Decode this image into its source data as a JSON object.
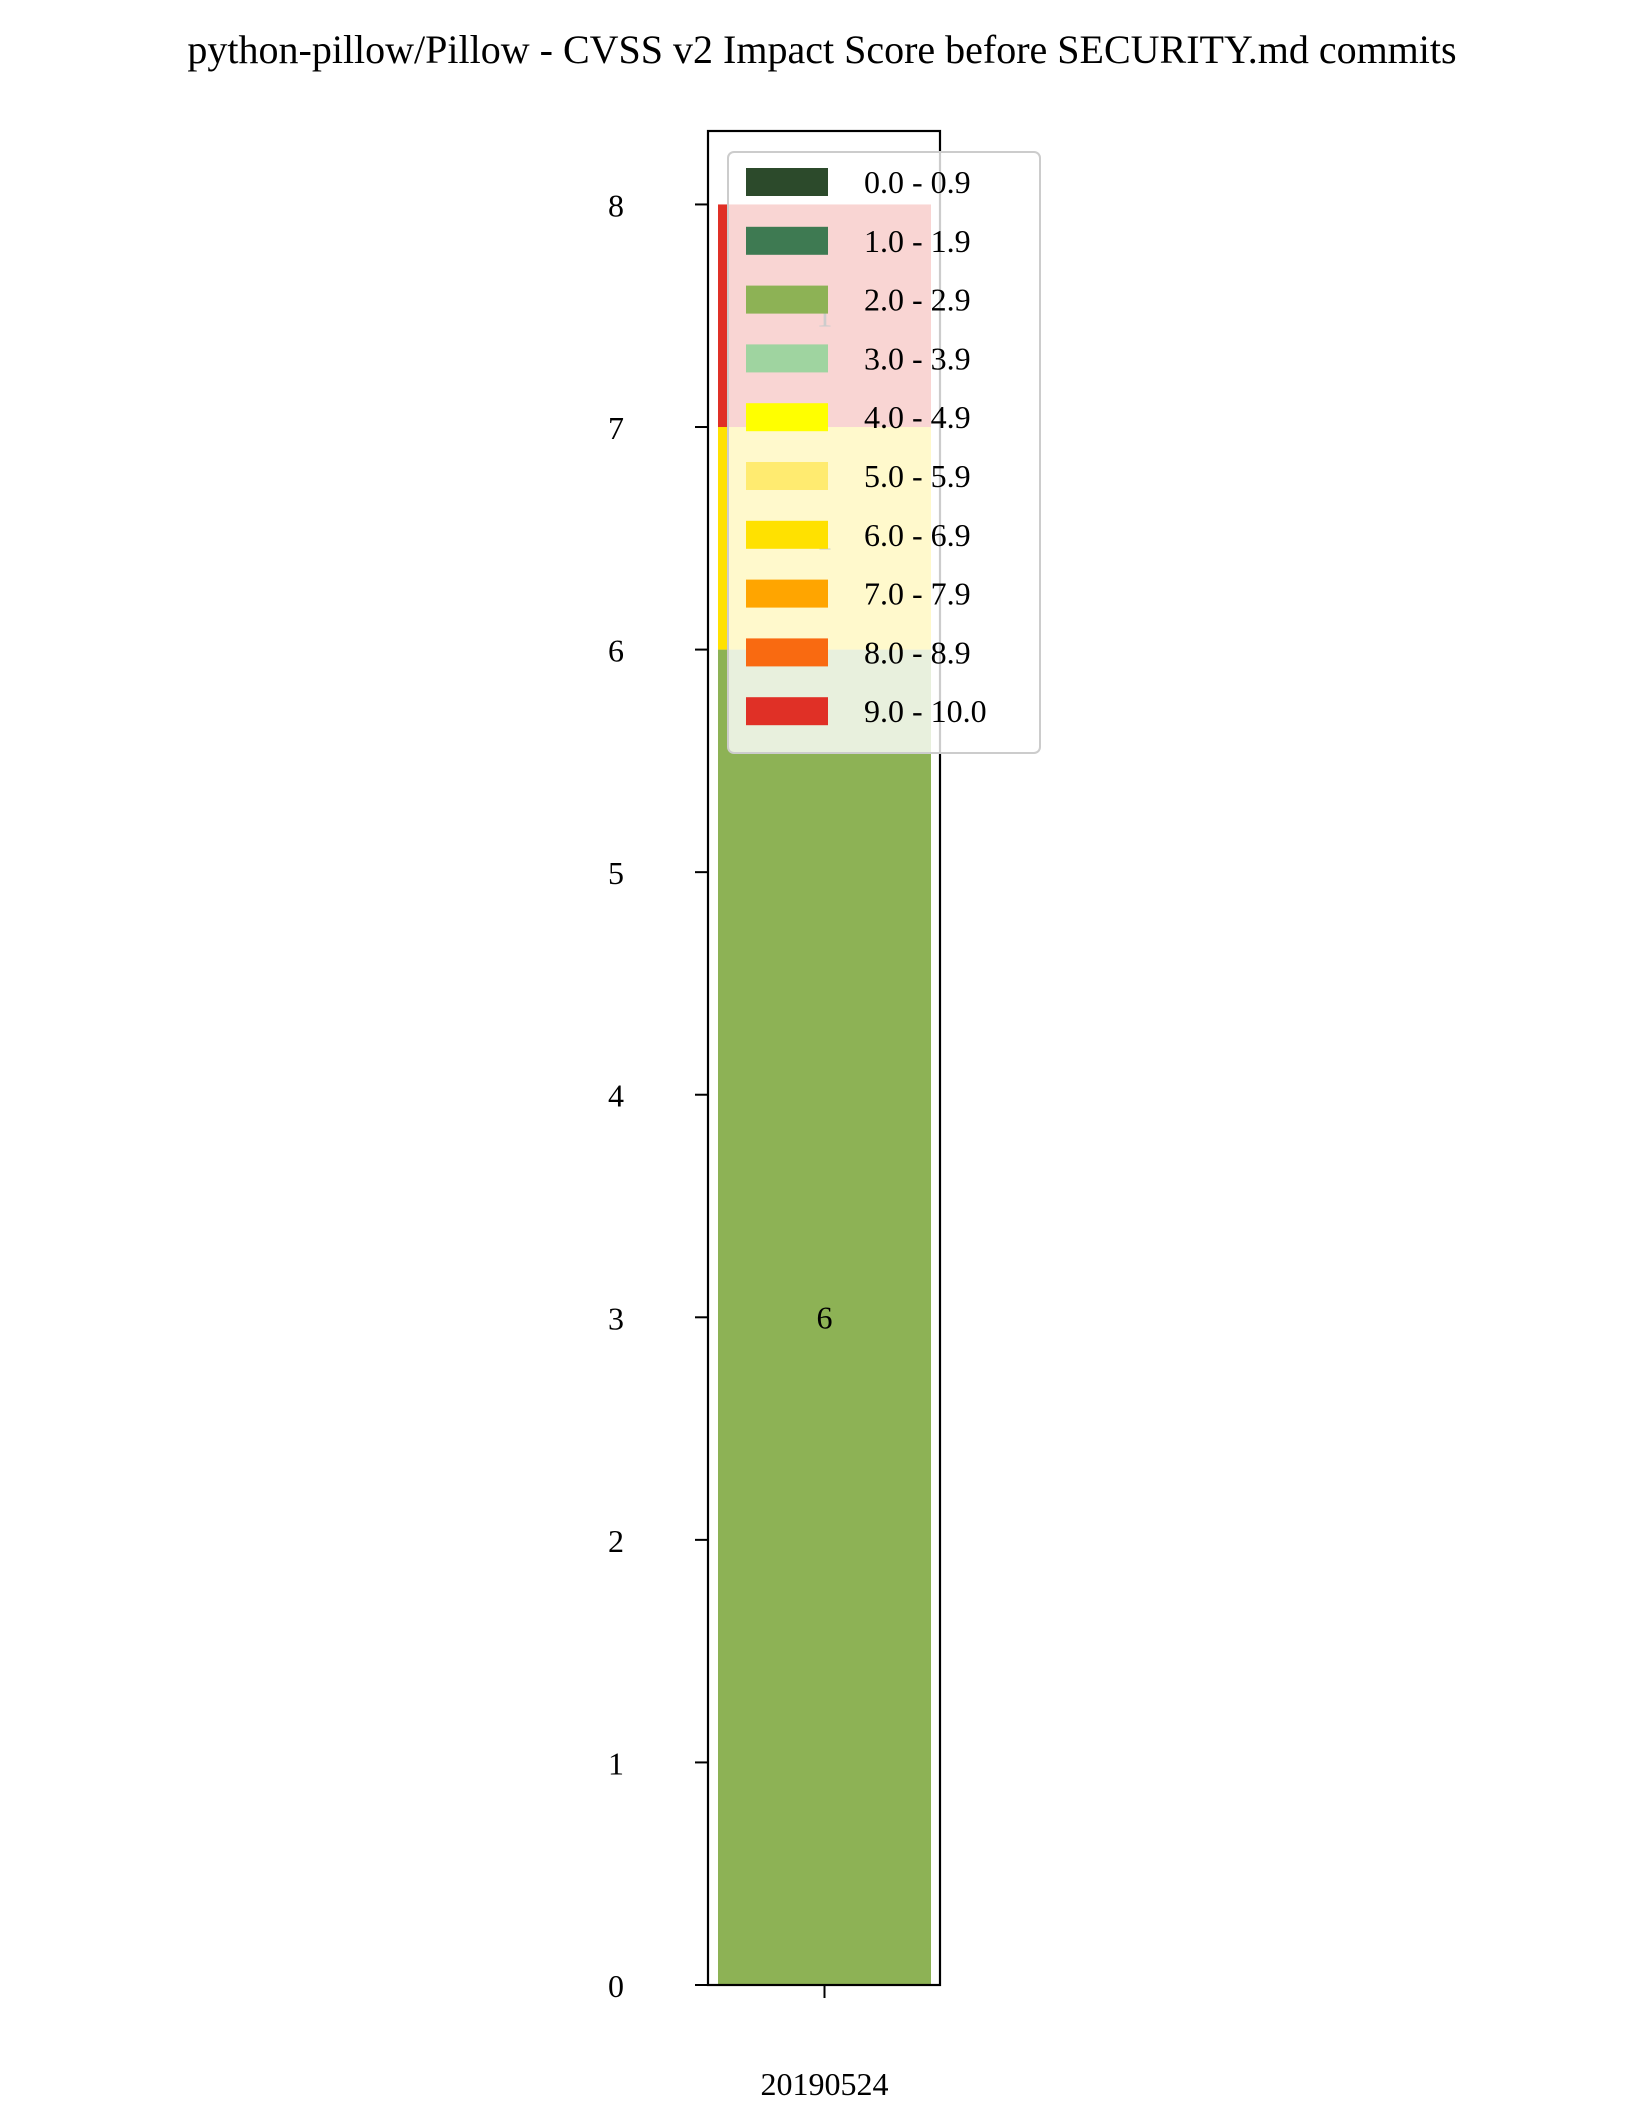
{
  "chart_data": {
    "type": "bar",
    "title": "python-pillow/Pillow - CVSS v2 Impact Score before SECURITY.md commits",
    "xlabel": "",
    "ylabel": "",
    "categories": [
      "20190524"
    ],
    "ylim": [
      0,
      8.33
    ],
    "yticks": [
      0,
      1,
      2,
      3,
      4,
      5,
      6,
      7,
      8
    ],
    "stacked": true,
    "grid": false,
    "legend_position": "upper-right",
    "series": [
      {
        "name": "0.0 - 0.9",
        "color": "#2c4a2b",
        "values": [
          0
        ]
      },
      {
        "name": "1.0 - 1.9",
        "color": "#3e7a52",
        "values": [
          0
        ]
      },
      {
        "name": "2.0 - 2.9",
        "color": "#8db255",
        "values": [
          6
        ]
      },
      {
        "name": "3.0 - 3.9",
        "color": "#9fd4a0",
        "values": [
          0
        ]
      },
      {
        "name": "4.0 - 4.9",
        "color": "#ffff00",
        "values": [
          0
        ]
      },
      {
        "name": "5.0 - 5.9",
        "color": "#ffeb70",
        "values": [
          0
        ]
      },
      {
        "name": "6.0 - 6.9",
        "color": "#ffe100",
        "values": [
          1
        ]
      },
      {
        "name": "7.0 - 7.9",
        "color": "#ffa500",
        "values": [
          0
        ]
      },
      {
        "name": "8.0 - 8.9",
        "color": "#f96a11",
        "values": [
          0
        ]
      },
      {
        "name": "9.0 - 10.0",
        "color": "#e03026",
        "values": [
          1
        ]
      }
    ],
    "data_labels": [
      {
        "series": "2.0 - 2.9",
        "category": "20190524",
        "text": "6"
      },
      {
        "series": "6.0 - 6.9",
        "category": "20190524",
        "text": "1"
      },
      {
        "series": "9.0 - 10.0",
        "category": "20190524",
        "text": "1"
      }
    ]
  }
}
